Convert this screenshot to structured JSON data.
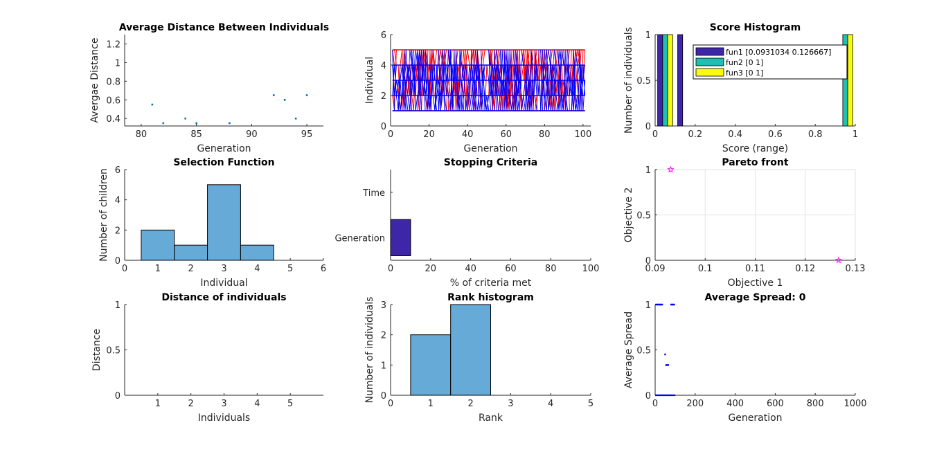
{
  "figure": {
    "background": "#ffffff",
    "axis_color": "#262626",
    "grid_color": "#e2e2e2"
  },
  "chart_data": [
    {
      "id": "avgdist",
      "type": "scatter",
      "title": "Average Distance Between Individuals",
      "xlabel": "Generation",
      "ylabel": "Avergae Distance",
      "xlim": [
        78.5,
        96.5
      ],
      "ylim": [
        0.32,
        1.3
      ],
      "xticks": [
        80,
        85,
        90,
        95
      ],
      "xticklabels": [
        "80",
        "85",
        "90",
        "95"
      ],
      "yticks": [
        0.4,
        0.6,
        0.8,
        1,
        1.2
      ],
      "yticklabels": [
        "0.4",
        "0.6",
        "0.8",
        "1",
        "1.2"
      ],
      "grid": false,
      "series": [
        {
          "color": "#0072bd",
          "marker": "dot",
          "x": [
            81,
            82,
            84,
            85,
            88,
            92,
            93,
            94,
            95
          ],
          "y": [
            0.55,
            0.35,
            0.4,
            0.35,
            0.35,
            0.65,
            0.6,
            0.4,
            0.65
          ]
        }
      ]
    },
    {
      "id": "genealogy",
      "type": "line",
      "title": "",
      "xlabel": "Generation",
      "ylabel": "Individual",
      "xlim": [
        0,
        104
      ],
      "ylim": [
        0,
        6
      ],
      "xticks": [
        0,
        20,
        40,
        60,
        80,
        100
      ],
      "xticklabels": [
        "0",
        "20",
        "40",
        "60",
        "80",
        "100"
      ],
      "yticks": [
        0,
        2,
        4,
        6
      ],
      "yticklabels": [
        "0",
        "2",
        "4",
        "6"
      ],
      "grid": false,
      "generations": [
        1,
        101
      ],
      "individuals": [
        1,
        2,
        3,
        4,
        5
      ],
      "series": [
        {
          "color": "#ff0000"
        },
        {
          "color": "#0000ff"
        }
      ]
    },
    {
      "id": "scorehist",
      "type": "bar",
      "title": "Score Histogram",
      "xlabel": "Score (range)",
      "ylabel": "Number of individuals",
      "xlim": [
        0,
        1
      ],
      "ylim": [
        0,
        1
      ],
      "xticks": [
        0,
        0.2,
        0.4,
        0.6,
        0.8,
        1
      ],
      "xticklabels": [
        "0",
        "0.2",
        "0.4",
        "0.6",
        "0.8",
        "1"
      ],
      "yticks": [
        0,
        0.5,
        1
      ],
      "yticklabels": [
        "0",
        "0.5",
        "1"
      ],
      "grid": false,
      "legend_position": "top-right",
      "bar_width": 0.025,
      "series": [
        {
          "name": "fun1 [0.0931034  0.126667]",
          "color": "#3e26a8",
          "x": [
            0.025,
            0.125
          ],
          "values": [
            1,
            1
          ]
        },
        {
          "name": "fun2 [0  1]",
          "color": "#1fbfb1",
          "x": [
            0.05,
            0.95
          ],
          "values": [
            1,
            1
          ]
        },
        {
          "name": "fun3 [0  1]",
          "color": "#f9fb0e",
          "x": [
            0.075,
            0.975
          ],
          "values": [
            1,
            1
          ]
        }
      ]
    },
    {
      "id": "selection",
      "type": "bar",
      "title": "Selection Function",
      "xlabel": "Individual",
      "ylabel": "Number of children",
      "xlim": [
        0,
        6
      ],
      "ylim": [
        0,
        6
      ],
      "xticks": [
        0,
        1,
        2,
        3,
        4,
        5,
        6
      ],
      "xticklabels": [
        "0",
        "1",
        "2",
        "3",
        "4",
        "5",
        "6"
      ],
      "yticks": [
        0,
        2,
        4,
        6
      ],
      "yticklabels": [
        "0",
        "2",
        "4",
        "6"
      ],
      "grid": false,
      "bar_color": "#66aad8",
      "categories": [
        1,
        2,
        3,
        4,
        5
      ],
      "values": [
        2,
        1,
        5,
        1,
        0
      ]
    },
    {
      "id": "stopping",
      "type": "bar",
      "orientation": "horizontal",
      "title": "Stopping Criteria",
      "xlabel": "% of criteria met",
      "ylabel": "",
      "xlim": [
        0,
        100
      ],
      "ylim": [
        0.5,
        2.5
      ],
      "xticks": [
        0,
        20,
        40,
        60,
        80,
        100
      ],
      "xticklabels": [
        "0",
        "20",
        "40",
        "60",
        "80",
        "100"
      ],
      "categories": [
        "Generation",
        "Time"
      ],
      "values": [
        10,
        0
      ],
      "bar_color": "#3e26a8",
      "grid": false
    },
    {
      "id": "pareto",
      "type": "scatter",
      "title": "Pareto front",
      "xlabel": "Objective 1",
      "ylabel": "Objective 2",
      "xlim": [
        0.09,
        0.13
      ],
      "ylim": [
        0,
        1
      ],
      "xticks": [
        0.09,
        0.1,
        0.11,
        0.12,
        0.13
      ],
      "xticklabels": [
        "0.09",
        "0.1",
        "0.11",
        "0.12",
        "0.13"
      ],
      "yticks": [
        0,
        0.5,
        1
      ],
      "yticklabels": [
        "0",
        "0.5",
        "1"
      ],
      "grid": true,
      "series": [
        {
          "color": "#ff00ff",
          "marker": "star",
          "x": [
            0.0931034,
            0.126667
          ],
          "y": [
            1,
            0
          ]
        }
      ]
    },
    {
      "id": "distindiv",
      "type": "scatter",
      "title": "Distance of individuals",
      "xlabel": "Individuals",
      "ylabel": "Distance",
      "xlim": [
        0,
        6
      ],
      "ylim": [
        0,
        1
      ],
      "xticks": [
        1,
        2,
        3,
        4,
        5
      ],
      "xticklabels": [
        "1",
        "2",
        "3",
        "4",
        "5"
      ],
      "yticks": [
        0,
        0.5,
        1
      ],
      "yticklabels": [
        "0",
        "0.5",
        "1"
      ],
      "grid": false,
      "series": []
    },
    {
      "id": "rankhist",
      "type": "bar",
      "title": "Rank histogram",
      "xlabel": "Rank",
      "ylabel": "Number of individuals",
      "xlim": [
        0,
        5
      ],
      "ylim": [
        0,
        3
      ],
      "xticks": [
        0,
        1,
        2,
        3,
        4,
        5
      ],
      "xticklabels": [
        "0",
        "1",
        "2",
        "3",
        "4",
        "5"
      ],
      "yticks": [
        0,
        1,
        2,
        3
      ],
      "yticklabels": [
        "0",
        "1",
        "2",
        "3"
      ],
      "grid": false,
      "bar_color": "#66aad8",
      "categories": [
        1,
        2
      ],
      "values": [
        2,
        3
      ]
    },
    {
      "id": "avgspread",
      "type": "scatter",
      "title": "Average Spread: 0",
      "xlabel": "Generation",
      "ylabel": "Average Spread",
      "xlim": [
        0,
        1000
      ],
      "ylim": [
        0,
        1
      ],
      "xticks": [
        0,
        200,
        400,
        600,
        800,
        1000
      ],
      "xticklabels": [
        "0",
        "200",
        "400",
        "600",
        "800",
        "1000"
      ],
      "yticks": [
        0,
        0.5,
        1
      ],
      "yticklabels": [
        "0",
        "0.5",
        "1"
      ],
      "grid": false,
      "series": [
        {
          "color": "#0000ff",
          "marker": "dot",
          "x": [
            5,
            10,
            15,
            20,
            25,
            30,
            35,
            50,
            55,
            60,
            65,
            80,
            85,
            90,
            95
          ],
          "y": [
            1,
            1,
            1,
            1,
            1,
            1,
            1,
            0.45,
            0.333,
            0.333,
            0.333,
            1,
            1,
            1,
            1
          ]
        },
        {
          "color": "#0000ff",
          "marker": "line",
          "x": [
            0,
            101
          ],
          "y": [
            0,
            0
          ]
        }
      ]
    }
  ]
}
